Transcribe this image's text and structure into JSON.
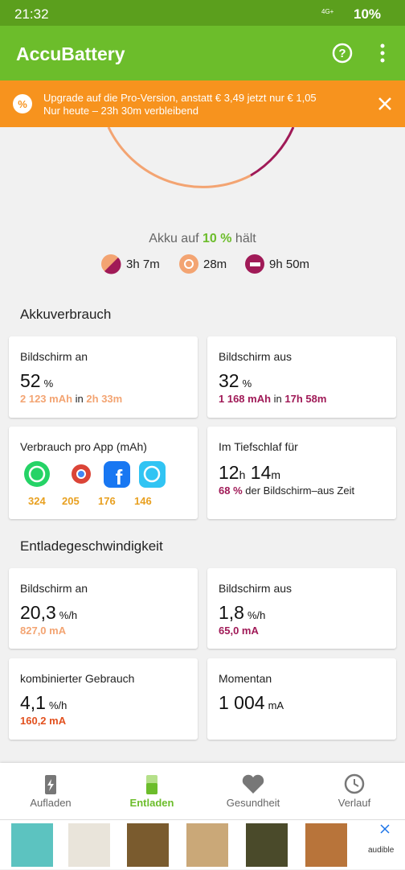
{
  "status_bar": {
    "time": "21:32",
    "network": "4G+",
    "battery": "10%"
  },
  "app_bar": {
    "title": "AccuBattery"
  },
  "banner": {
    "line1": "Upgrade auf die Pro-Version, anstatt € 3,49 jetzt nur € 1,05",
    "line2": "Nur heute – 23h 30m verbleibend"
  },
  "hero": {
    "prefix": "Akku auf",
    "level": "10 %",
    "suffix": "hält",
    "times": [
      "3h 7m",
      "28m",
      "9h 50m"
    ]
  },
  "usage": {
    "title": "Akkuverbrauch",
    "screen_on": {
      "label": "Bildschirm an",
      "value": 52,
      "unit": "%",
      "mah": "2 123 mAh",
      "in": "in",
      "time": "2h 33m"
    },
    "screen_off": {
      "label": "Bildschirm aus",
      "value": 32,
      "unit": "%",
      "mah": "1 168 mAh",
      "in": "in",
      "time": "17h 58m"
    },
    "per_app": {
      "label": "Verbrauch pro App (mAh)",
      "values": [
        324,
        205,
        176,
        146
      ]
    },
    "deep_sleep": {
      "label": "Im Tiefschlaf für",
      "hours": 12,
      "h": "h",
      "minutes": 14,
      "m": "m",
      "percent": "68 %",
      "text": "der Bildschirm–aus Zeit"
    }
  },
  "discharge": {
    "title": "Entladegeschwindigkeit",
    "screen_on": {
      "label": "Bildschirm an",
      "value": "20,3",
      "unit": "%/h",
      "current": "827,0 mA"
    },
    "screen_off": {
      "label": "Bildschirm aus",
      "value": "1,8",
      "unit": "%/h",
      "current": "65,0 mA"
    },
    "combined": {
      "label": "kombinierter Gebrauch",
      "value": "4,1",
      "unit": "%/h",
      "current": "160,2 mA"
    },
    "now": {
      "label": "Momentan",
      "value": "1 004",
      "unit": "mA"
    }
  },
  "nav": [
    "Aufladen",
    "Entladen",
    "Gesundheit",
    "Verlauf"
  ],
  "ad": {
    "brand": "audible"
  }
}
